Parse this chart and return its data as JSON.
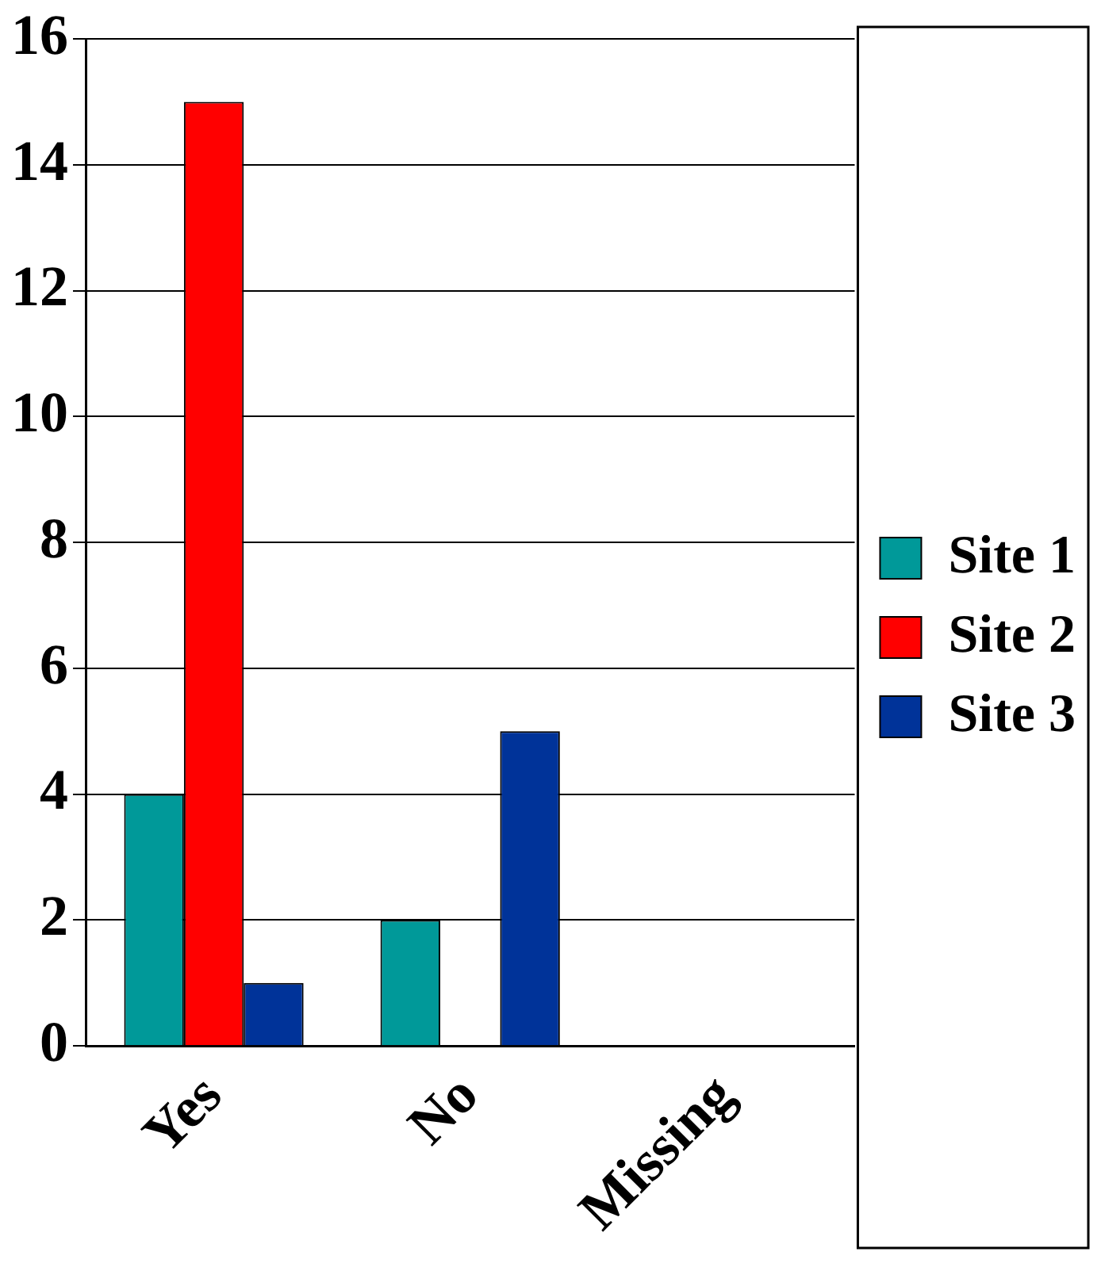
{
  "chart_data": {
    "type": "bar",
    "categories": [
      "Yes",
      "No",
      "Missing"
    ],
    "series": [
      {
        "name": "Site 1",
        "color": "#009999",
        "values": [
          4,
          2,
          0
        ]
      },
      {
        "name": "Site 2",
        "color": "#ff0000",
        "values": [
          15,
          0,
          0
        ]
      },
      {
        "name": "Site 3",
        "color": "#003399",
        "values": [
          1,
          5,
          0
        ]
      }
    ],
    "ylim": [
      0,
      16
    ],
    "yticks": [
      0,
      2,
      4,
      6,
      8,
      10,
      12,
      14,
      16
    ],
    "grid": "y",
    "legend": "right"
  }
}
